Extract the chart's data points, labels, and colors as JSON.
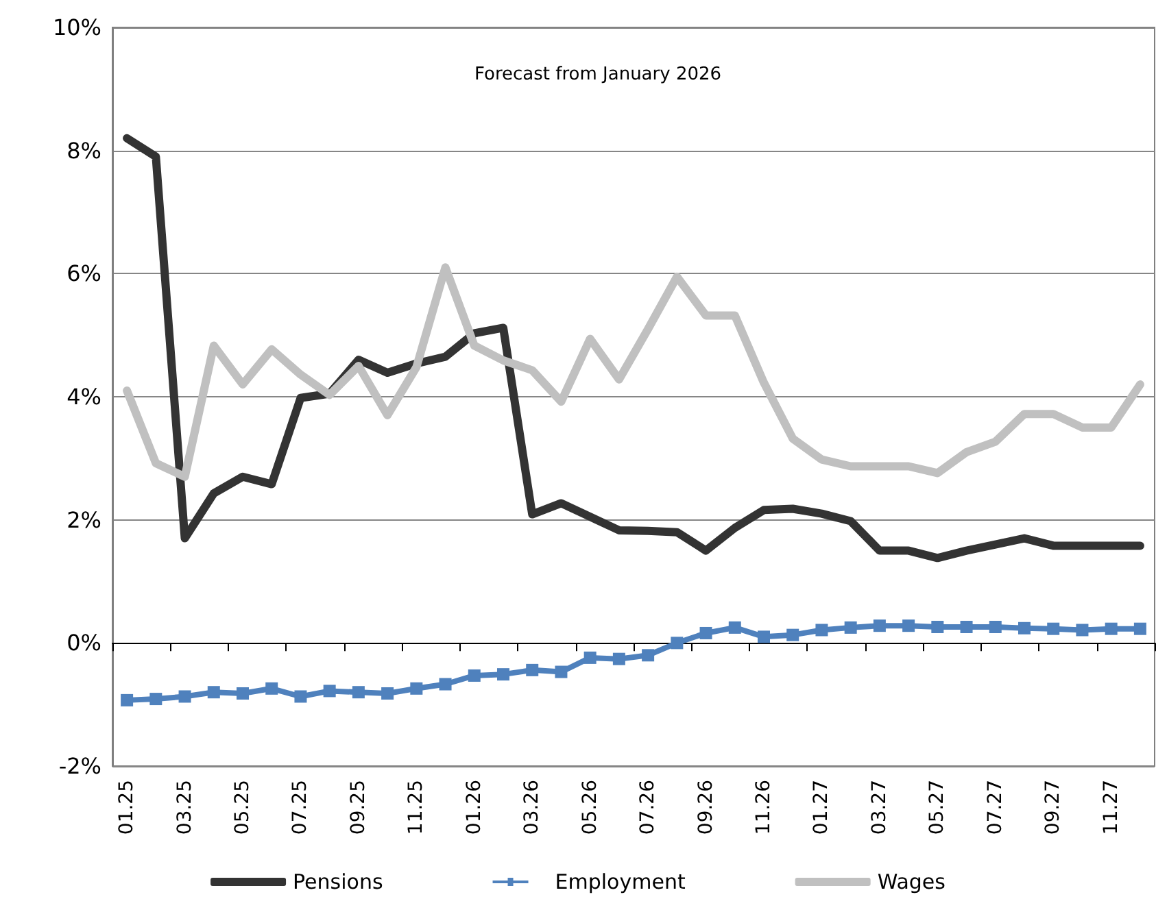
{
  "chart_data": {
    "type": "line",
    "categories": [
      "01.25",
      null,
      "03.25",
      null,
      "05.25",
      null,
      "07.25",
      null,
      "09.25",
      null,
      "11.25",
      null,
      "01.26",
      null,
      "03.26",
      null,
      "05.26",
      null,
      "07.26",
      null,
      "09.26",
      null,
      "11.26",
      null,
      "01.27",
      null,
      "03.27",
      null,
      "05.27",
      null,
      "07.27",
      null,
      "09.27",
      null,
      "11.27",
      null
    ],
    "series": [
      {
        "name": "Pensions",
        "color": "#333333",
        "marker": "none",
        "values": [
          8.2,
          7.9,
          1.7,
          2.43,
          2.7,
          2.58,
          3.98,
          4.05,
          4.6,
          4.39,
          4.54,
          4.65,
          5.03,
          5.12,
          2.09,
          2.27,
          2.05,
          1.83,
          1.82,
          1.8,
          1.5,
          1.87,
          2.16,
          2.18,
          2.1,
          1.98,
          1.5,
          1.5,
          1.38,
          1.5,
          1.6,
          1.7,
          1.58,
          1.58,
          1.58,
          1.58
        ]
      },
      {
        "name": "Employment",
        "color": "#4f81bd",
        "marker": "square",
        "values": [
          -0.93,
          -0.91,
          -0.87,
          -0.8,
          -0.82,
          -0.74,
          -0.87,
          -0.78,
          -0.8,
          -0.82,
          -0.74,
          -0.67,
          -0.53,
          -0.51,
          -0.44,
          -0.47,
          -0.24,
          -0.26,
          -0.2,
          0,
          0.16,
          0.25,
          0.1,
          0.13,
          0.21,
          0.25,
          0.28,
          0.28,
          0.26,
          0.26,
          0.26,
          0.24,
          0.23,
          0.21,
          0.23,
          0.23
        ]
      },
      {
        "name": "Wages",
        "color": "#c0c0c0",
        "marker": "none",
        "values": [
          4.1,
          2.92,
          2.7,
          4.83,
          4.2,
          4.77,
          4.36,
          4.03,
          4.5,
          3.7,
          4.48,
          6.1,
          4.83,
          4.59,
          4.43,
          3.92,
          4.94,
          4.28,
          5.1,
          5.95,
          5.32,
          5.32,
          4.23,
          3.32,
          2.98,
          2.87,
          2.87,
          2.87,
          2.76,
          3.1,
          3.27,
          3.72,
          3.72,
          3.5,
          3.5,
          4.2
        ]
      }
    ],
    "ylim": [
      -2,
      10
    ],
    "yticks": [
      {
        "value": -2,
        "label": "-2%"
      },
      {
        "value": 0,
        "label": "0%"
      },
      {
        "value": 2,
        "label": "2%"
      },
      {
        "value": 4,
        "label": "4%"
      },
      {
        "value": 6,
        "label": "6%"
      },
      {
        "value": 8,
        "label": "8%"
      },
      {
        "value": 10,
        "label": "10%"
      }
    ],
    "grid": "y",
    "legend": "bottom",
    "line_style": "solid",
    "annotations": [
      "Forecast from January 2026"
    ]
  }
}
